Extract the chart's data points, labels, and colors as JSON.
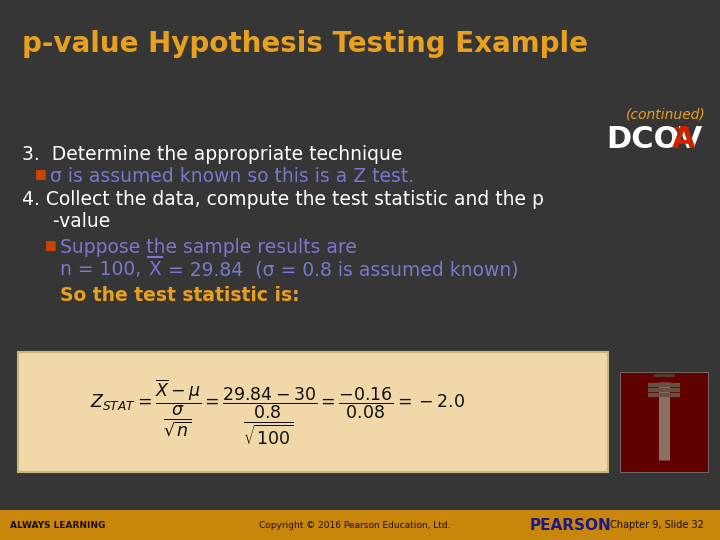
{
  "title": "p-value Hypothesis Testing Example",
  "continued": "(continued)",
  "dcova": "DCOV",
  "dcova_a": "A",
  "bg_color": "#363636",
  "footer_color": "#c8860a",
  "title_color": "#e8a020",
  "white": "#ffffff",
  "orange": "#e8a020",
  "teal": "#7878cc",
  "red_bullet": "#cc4400",
  "formula_bg": "#f0d8a8",
  "formula_border": "#c8b878",
  "dcova_red": "#cc2200",
  "footer_text": "#1a0e00",
  "footer_pearson": "#1a1a88",
  "item3_text": "3.  Determine the appropriate technique",
  "item3_sub": "σ is assumed known so this is a Z test.",
  "item4_line1": "4. Collect the data, compute the test statistic and the p",
  "item4_line2": "   -value",
  "item4_sub1": "Suppose the sample results are",
  "item4_sub2_pre": "n = 100,   ",
  "item4_sub2_x": "X",
  "item4_sub2_post": " = 29.84  (σ = 0.8 is assumed known)",
  "so_text": "So the test statistic is:",
  "footer_left": "ALWAYS LEARNING",
  "footer_copy": "Copyright © 2016 Pearson Education, Ltd.",
  "footer_pearson_text": "PEARSON",
  "footer_chapter": "Chapter 9, Slide 32",
  "formula": "$Z_{STAT} = \\dfrac{\\overline{X} - \\mu}{\\dfrac{\\sigma}{\\sqrt{n}}} = \\dfrac{29.84 - 30}{\\dfrac{0.8}{\\sqrt{100}}} = \\dfrac{-0.16}{0.08} = -2.0$"
}
